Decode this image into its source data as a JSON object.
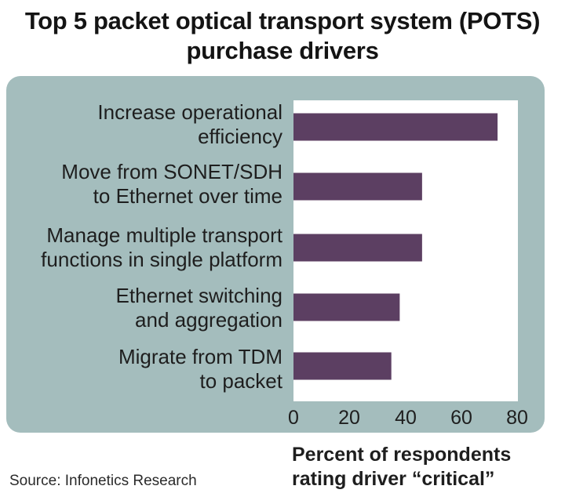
{
  "chart_data": {
    "type": "bar",
    "orientation": "horizontal",
    "title_lines": [
      "Top 5 packet optical transport system (POTS)",
      "purchase drivers"
    ],
    "categories": [
      [
        "Increase operational",
        "efficiency"
      ],
      [
        "Move from SONET/SDH",
        "to Ethernet over time"
      ],
      [
        "Manage multiple transport",
        "functions in single platform"
      ],
      [
        "Ethernet switching",
        "and aggregation"
      ],
      [
        "Migrate from TDM",
        "to packet"
      ]
    ],
    "values": [
      73,
      46,
      46,
      38,
      35
    ],
    "xlim": [
      0,
      80
    ],
    "xticks": [
      "0",
      "20",
      "40",
      "60",
      "80"
    ],
    "xlabel_lines": [
      "Percent of respondents",
      "rating driver “critical”"
    ],
    "grid": false,
    "bar_color": "#5c3f62",
    "panel_color": "#a4bdbd"
  },
  "source": "Source: Infonetics Research"
}
